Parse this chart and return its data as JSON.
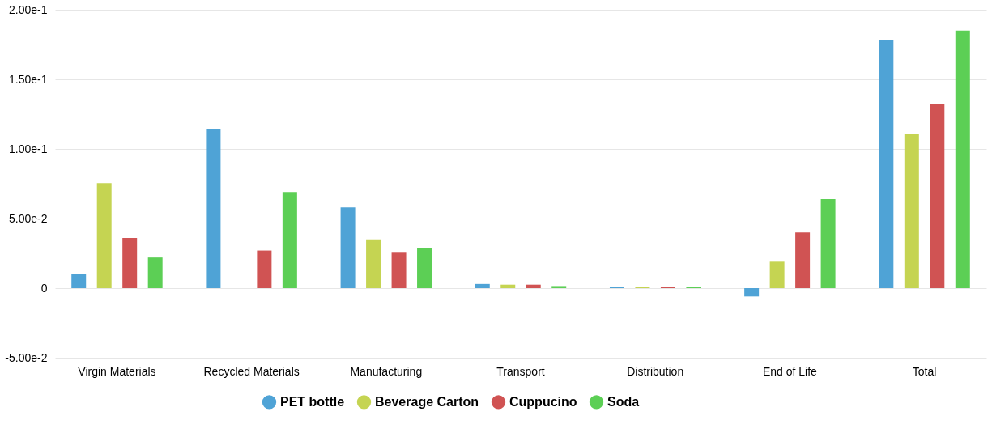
{
  "chart_data": {
    "type": "bar",
    "categories": [
      "Virgin Materials",
      "Recycled Materials",
      "Manufacturing",
      "Transport",
      "Distribution",
      "End of Life",
      "Total"
    ],
    "series": [
      {
        "name": "PET bottle",
        "color": "#4fa3d6",
        "values": [
          0.01,
          0.114,
          0.058,
          0.003,
          0.001,
          -0.006,
          0.178
        ]
      },
      {
        "name": "Beverage Carton",
        "color": "#c5d452",
        "values": [
          0.0755,
          0,
          0.035,
          0.0025,
          0.001,
          0.019,
          0.111
        ]
      },
      {
        "name": "Cuppucino",
        "color": "#d05353",
        "values": [
          0.036,
          0.027,
          0.026,
          0.0025,
          0.001,
          0.04,
          0.132
        ]
      },
      {
        "name": "Soda",
        "color": "#5ccf55",
        "values": [
          0.022,
          0.069,
          0.029,
          0.0015,
          0.001,
          0.064,
          0.185
        ]
      }
    ],
    "ylim": [
      -0.05,
      0.2
    ],
    "yticks": [
      {
        "value": -0.05,
        "label": "-5.00e-2"
      },
      {
        "value": 0,
        "label": "0"
      },
      {
        "value": 0.05,
        "label": "5.00e-2"
      },
      {
        "value": 0.1,
        "label": "1.00e-1"
      },
      {
        "value": 0.15,
        "label": "1.50e-1"
      },
      {
        "value": 0.2,
        "label": "2.00e-1"
      }
    ],
    "grid": "y",
    "legend": "bottom"
  }
}
